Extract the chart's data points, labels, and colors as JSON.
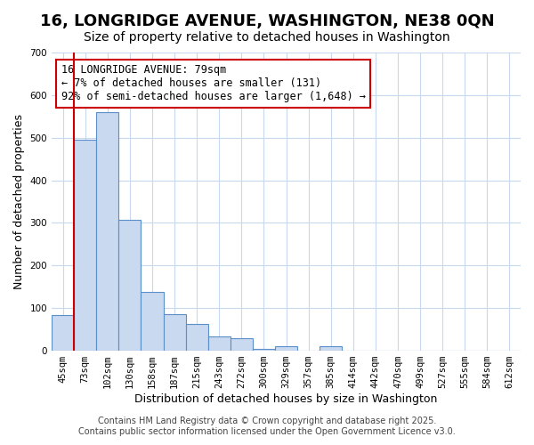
{
  "title": "16, LONGRIDGE AVENUE, WASHINGTON, NE38 0QN",
  "subtitle": "Size of property relative to detached houses in Washington",
  "xlabel": "Distribution of detached houses by size in Washington",
  "ylabel": "Number of detached properties",
  "bin_labels": [
    "45sqm",
    "73sqm",
    "102sqm",
    "130sqm",
    "158sqm",
    "187sqm",
    "215sqm",
    "243sqm",
    "272sqm",
    "300sqm",
    "329sqm",
    "357sqm",
    "385sqm",
    "414sqm",
    "442sqm",
    "470sqm",
    "499sqm",
    "527sqm",
    "555sqm",
    "584sqm",
    "612sqm"
  ],
  "bar_values": [
    83,
    495,
    560,
    308,
    138,
    85,
    63,
    33,
    29,
    5,
    10,
    0,
    10,
    0,
    0,
    0,
    0,
    0,
    0,
    0,
    0
  ],
  "bar_color": "#c8d9f0",
  "bar_edge_color": "#5b8fc9",
  "vline_x": 0.5,
  "vline_color": "#cc0000",
  "ylim": [
    0,
    700
  ],
  "yticks": [
    0,
    100,
    200,
    300,
    400,
    500,
    600,
    700
  ],
  "annotation_title": "16 LONGRIDGE AVENUE: 79sqm",
  "annotation_line1": "← 7% of detached houses are smaller (131)",
  "annotation_line2": "92% of semi-detached houses are larger (1,648) →",
  "annotation_box_color": "#ffffff",
  "annotation_box_edge": "#cc0000",
  "footer1": "Contains HM Land Registry data © Crown copyright and database right 2025.",
  "footer2": "Contains public sector information licensed under the Open Government Licence v3.0.",
  "background_color": "#ffffff",
  "grid_color": "#c8d8ee",
  "title_fontsize": 13,
  "subtitle_fontsize": 10,
  "axis_label_fontsize": 9,
  "tick_fontsize": 7.5,
  "annotation_fontsize": 8.5,
  "footer_fontsize": 7
}
